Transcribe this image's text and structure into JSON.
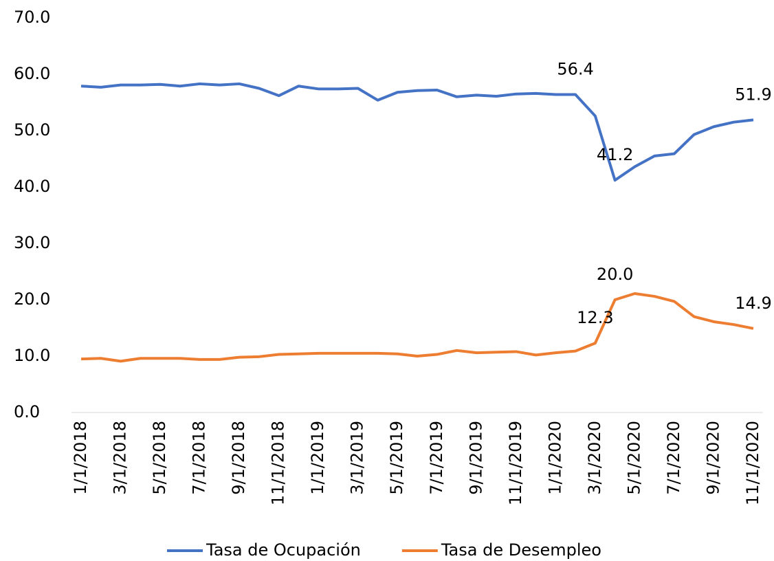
{
  "chart_data": {
    "type": "line",
    "categories": [
      "1/1/2018",
      null,
      "3/1/2018",
      null,
      "5/1/2018",
      null,
      "7/1/2018",
      null,
      "9/1/2018",
      null,
      "11/1/2018",
      null,
      "1/1/2019",
      null,
      "3/1/2019",
      null,
      "5/1/2019",
      null,
      "7/1/2019",
      null,
      "9/1/2019",
      null,
      "11/1/2019",
      null,
      "1/1/2020",
      null,
      "3/1/2020",
      null,
      "5/1/2020",
      null,
      "7/1/2020",
      null,
      "9/1/2020",
      null,
      "11/1/2020"
    ],
    "series": [
      {
        "name": "Tasa de Ocupación",
        "color": "#4472c4",
        "values": [
          57.9,
          57.7,
          58.1,
          58.1,
          58.2,
          57.9,
          58.3,
          58.1,
          58.3,
          57.5,
          56.2,
          57.9,
          57.4,
          57.4,
          57.5,
          55.4,
          56.8,
          57.1,
          57.2,
          56.0,
          56.3,
          56.1,
          56.5,
          56.6,
          56.4,
          56.4,
          52.6,
          41.2,
          43.6,
          45.5,
          45.9,
          49.3,
          50.7,
          51.5,
          51.9
        ],
        "value_labels": [
          null,
          null,
          null,
          null,
          null,
          null,
          null,
          null,
          null,
          null,
          null,
          null,
          null,
          null,
          null,
          null,
          null,
          null,
          null,
          null,
          null,
          null,
          null,
          null,
          null,
          "56.4",
          null,
          "41.2",
          null,
          null,
          null,
          null,
          null,
          null,
          "51.9"
        ]
      },
      {
        "name": "Tasa de Desempleo",
        "color": "#ed7d31",
        "values": [
          9.5,
          9.6,
          9.1,
          9.6,
          9.6,
          9.6,
          9.4,
          9.4,
          9.8,
          9.9,
          10.3,
          10.4,
          10.5,
          10.5,
          10.5,
          10.5,
          10.4,
          10.0,
          10.3,
          11.0,
          10.6,
          10.7,
          10.8,
          10.2,
          10.6,
          10.9,
          12.3,
          20.0,
          21.1,
          20.6,
          19.7,
          17.0,
          16.1,
          15.6,
          14.9
        ],
        "value_labels": [
          null,
          null,
          null,
          null,
          null,
          null,
          null,
          null,
          null,
          null,
          null,
          null,
          null,
          null,
          null,
          null,
          null,
          null,
          null,
          null,
          null,
          null,
          null,
          null,
          null,
          null,
          "12.3",
          "20.0",
          null,
          null,
          null,
          null,
          null,
          null,
          "14.9"
        ]
      }
    ],
    "ylim": [
      0,
      70
    ],
    "yticks": [
      {
        "value": 0,
        "label": "0.0"
      },
      {
        "value": 10,
        "label": "10.0"
      },
      {
        "value": 20,
        "label": "20.0"
      },
      {
        "value": 30,
        "label": "30.0"
      },
      {
        "value": 40,
        "label": "40.0"
      },
      {
        "value": 50,
        "label": "50.0"
      },
      {
        "value": 60,
        "label": "60.0"
      },
      {
        "value": 70,
        "label": "70.0"
      }
    ],
    "legend": "bottom"
  }
}
